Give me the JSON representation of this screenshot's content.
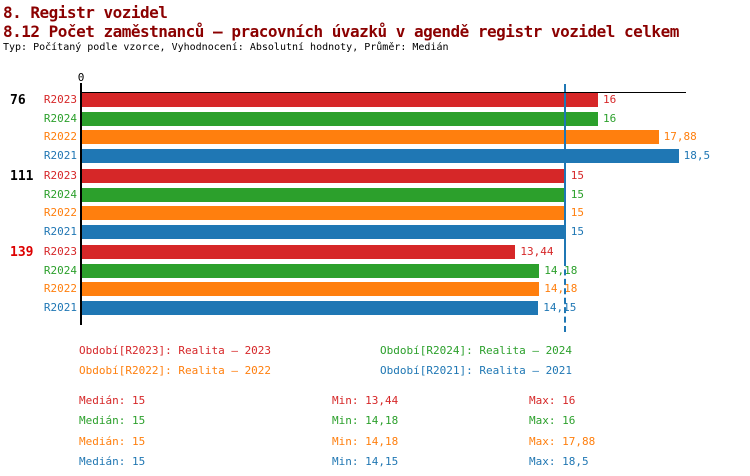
{
  "header": {
    "section_title": "8. Registr vozidel",
    "chart_title": "8.12 Počet zaměstnanců – pracovních úvazků v agendě registr vozidel celkem",
    "subtitle": "Typ: Počítaný podle vzorce, Vyhodnocení: Absolutní hodnoty, Průměr: Medián"
  },
  "colors": {
    "title": "#8b0000",
    "normal_label": "#000000",
    "alert_label": "#dd0000",
    "axis": "#000000",
    "median_line": "#1f77b4"
  },
  "chart_data": {
    "type": "bar",
    "orientation": "horizontal",
    "x_axis": {
      "tick_label": "0",
      "min": 0,
      "max_visible": 18.75,
      "grid": false
    },
    "median_value": 15,
    "series_colors": {
      "R2023": "#d62728",
      "R2024": "#2ca02c",
      "R2022": "#ff7f0e",
      "R2021": "#1f77b4"
    },
    "groups": [
      {
        "label": "76",
        "alert": false,
        "bars": [
          {
            "series": "R2023",
            "value": 16,
            "display": "16"
          },
          {
            "series": "R2024",
            "value": 16,
            "display": "16"
          },
          {
            "series": "R2022",
            "value": 17.88,
            "display": "17,88"
          },
          {
            "series": "R2021",
            "value": 18.5,
            "display": "18,5"
          }
        ]
      },
      {
        "label": "111",
        "alert": false,
        "bars": [
          {
            "series": "R2023",
            "value": 15,
            "display": "15"
          },
          {
            "series": "R2024",
            "value": 15,
            "display": "15"
          },
          {
            "series": "R2022",
            "value": 15,
            "display": "15"
          },
          {
            "series": "R2021",
            "value": 15,
            "display": "15"
          }
        ]
      },
      {
        "label": "139",
        "alert": true,
        "bars": [
          {
            "series": "R2023",
            "value": 13.44,
            "display": "13,44"
          },
          {
            "series": "R2024",
            "value": 14.18,
            "display": "14,18"
          },
          {
            "series": "R2022",
            "value": 14.18,
            "display": "14,18"
          },
          {
            "series": "R2021",
            "value": 14.15,
            "display": "14,15"
          }
        ]
      }
    ]
  },
  "legend": [
    {
      "series": "R2023",
      "text": "Období[R2023]: Realita – 2023"
    },
    {
      "series": "R2024",
      "text": "Období[R2024]: Realita – 2024"
    },
    {
      "series": "R2022",
      "text": "Období[R2022]: Realita – 2022"
    },
    {
      "series": "R2021",
      "text": "Období[R2021]: Realita – 2021"
    }
  ],
  "stats": [
    {
      "series": "R2023",
      "median": "Medián: 15",
      "min": "Min: 13,44",
      "max": "Max: 16"
    },
    {
      "series": "R2024",
      "median": "Medián: 15",
      "min": "Min: 14,18",
      "max": "Max: 16"
    },
    {
      "series": "R2022",
      "median": "Medián: 15",
      "min": "Min: 14,18",
      "max": "Max: 17,88"
    },
    {
      "series": "R2021",
      "median": "Medián: 15",
      "min": "Min: 14,15",
      "max": "Max: 18,5"
    }
  ]
}
